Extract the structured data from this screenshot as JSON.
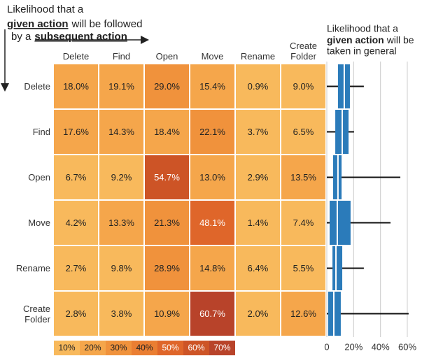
{
  "chart_data": [
    {
      "type": "heatmap",
      "annotation": [
        "Likelihood that a",
        "given action",
        "will be followed",
        "by a",
        "subsequent action"
      ],
      "x_categories": [
        "Delete",
        "Find",
        "Open",
        "Move",
        "Rename",
        "Create Folder"
      ],
      "y_categories": [
        "Delete",
        "Find",
        "Open",
        "Move",
        "Rename",
        "Create Folder"
      ],
      "values": [
        [
          18.0,
          19.1,
          29.0,
          15.4,
          0.9,
          9.0
        ],
        [
          17.6,
          14.3,
          18.4,
          22.1,
          3.7,
          6.5
        ],
        [
          6.7,
          9.2,
          54.7,
          13.0,
          2.9,
          13.5
        ],
        [
          4.2,
          13.3,
          21.3,
          48.1,
          1.4,
          7.4
        ],
        [
          2.7,
          9.8,
          28.9,
          14.8,
          6.4,
          5.5
        ],
        [
          2.8,
          3.8,
          10.9,
          60.7,
          2.0,
          12.6
        ]
      ],
      "value_labels": [
        [
          "18.0%",
          "19.1%",
          "29.0%",
          "15.4%",
          "0.9%",
          "9.0%"
        ],
        [
          "17.6%",
          "14.3%",
          "18.4%",
          "22.1%",
          "3.7%",
          "6.5%"
        ],
        [
          "6.7%",
          "9.2%",
          "54.7%",
          "13.0%",
          "2.9%",
          "13.5%"
        ],
        [
          "4.2%",
          "13.3%",
          "21.3%",
          "48.1%",
          "1.4%",
          "7.4%"
        ],
        [
          "2.7%",
          "9.8%",
          "28.9%",
          "14.8%",
          "6.4%",
          "5.5%"
        ],
        [
          "2.8%",
          "3.8%",
          "10.9%",
          "60.7%",
          "2.0%",
          "12.6%"
        ]
      ],
      "colorbar": [
        {
          "value": 10,
          "label": "10%"
        },
        {
          "value": 20,
          "label": "20%"
        },
        {
          "value": 30,
          "label": "30%"
        },
        {
          "value": 40,
          "label": "40%"
        },
        {
          "value": 50,
          "label": "50%"
        },
        {
          "value": 60,
          "label": "60%"
        },
        {
          "value": 70,
          "label": "70%"
        }
      ],
      "colors": [
        "#f8b95c",
        "#f5a64b",
        "#f0923c",
        "#ea7e32",
        "#df662a",
        "#cd5426",
        "#b8432a"
      ]
    },
    {
      "type": "box",
      "annotation": [
        "Likelihood that a",
        "given action",
        "will be",
        "taken in general"
      ],
      "color": "#2b7bba",
      "boxes": [
        {
          "min": 0,
          "q1": 8.3,
          "median": 13,
          "q3": 17.2,
          "max": 27.6
        },
        {
          "min": 0,
          "q1": 6.3,
          "median": 11.5,
          "q3": 16.2,
          "max": 20.3
        },
        {
          "min": 0,
          "q1": 4.7,
          "median": 8.3,
          "q3": 11,
          "max": 54.8
        },
        {
          "min": 0,
          "q1": 2.1,
          "median": 7.8,
          "q3": 17.7,
          "max": 47.5
        },
        {
          "min": 0,
          "q1": 4.2,
          "median": 6.8,
          "q3": 11.5,
          "max": 27.6
        },
        {
          "min": 0,
          "q1": 1,
          "median": 5.2,
          "q3": 10.4,
          "max": 61
        }
      ],
      "xlim": [
        0,
        60
      ],
      "xticks": [
        0,
        {
          "value": 20,
          "label": "20%"
        },
        {
          "value": 40,
          "label": "40%"
        },
        {
          "value": 60,
          "label": "60%"
        }
      ],
      "grid": true
    }
  ]
}
